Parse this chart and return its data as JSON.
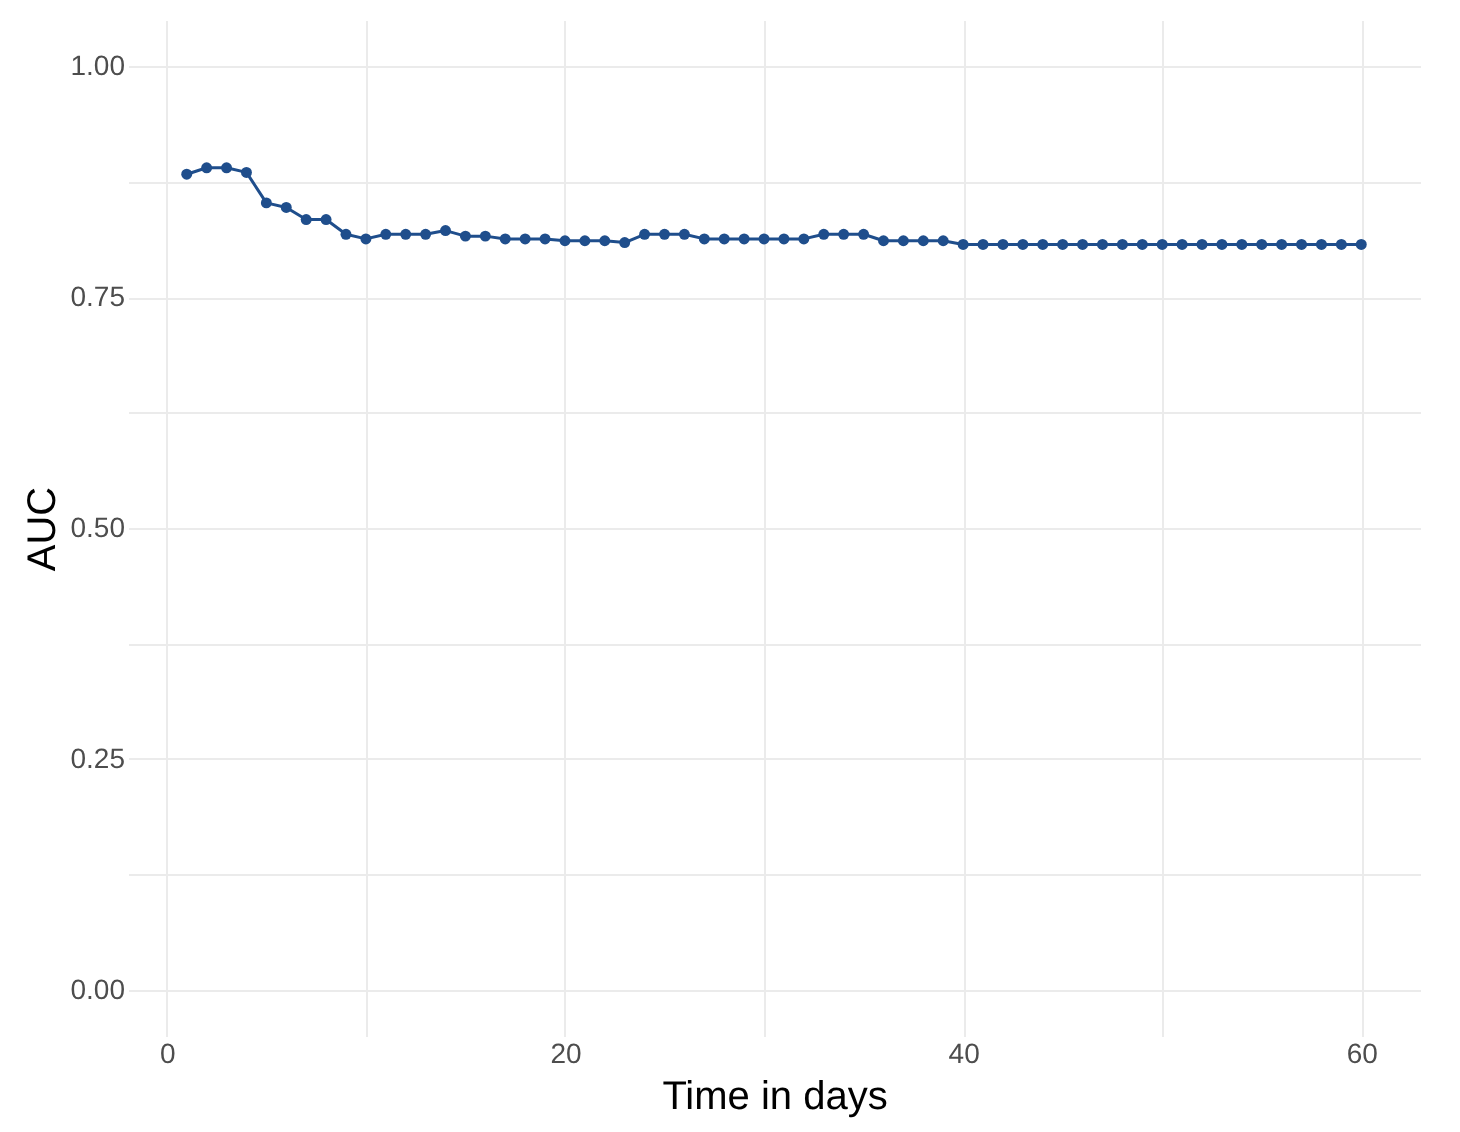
{
  "chart_data": {
    "type": "line",
    "xlabel": "Time in days",
    "ylabel": "AUC",
    "x": [
      1,
      2,
      3,
      4,
      5,
      6,
      7,
      8,
      9,
      10,
      11,
      12,
      13,
      14,
      15,
      16,
      17,
      18,
      19,
      20,
      21,
      22,
      23,
      24,
      25,
      26,
      27,
      28,
      29,
      30,
      31,
      32,
      33,
      34,
      35,
      36,
      37,
      38,
      39,
      40,
      41,
      42,
      43,
      44,
      45,
      46,
      47,
      48,
      49,
      50,
      51,
      52,
      53,
      54,
      55,
      56,
      57,
      58,
      59,
      60
    ],
    "series": [
      {
        "color": "#1f4e8c",
        "values": [
          0.883,
          0.89,
          0.89,
          0.885,
          0.852,
          0.847,
          0.834,
          0.834,
          0.818,
          0.813,
          0.818,
          0.818,
          0.818,
          0.822,
          0.816,
          0.816,
          0.813,
          0.813,
          0.813,
          0.811,
          0.811,
          0.811,
          0.809,
          0.818,
          0.818,
          0.818,
          0.813,
          0.813,
          0.813,
          0.813,
          0.813,
          0.813,
          0.818,
          0.818,
          0.818,
          0.811,
          0.811,
          0.811,
          0.811,
          0.807,
          0.807,
          0.807,
          0.807,
          0.807,
          0.807,
          0.807,
          0.807,
          0.807,
          0.807,
          0.807,
          0.807,
          0.807,
          0.807,
          0.807,
          0.807,
          0.807,
          0.807,
          0.807,
          0.807,
          0.807
        ]
      }
    ],
    "xlim": [
      -1.95,
      62.95
    ],
    "ylim": [
      -0.05,
      1.05
    ],
    "xticks": [
      0,
      {
        "value": 10,
        "label": null
      },
      20,
      {
        "value": 30,
        "label": null
      },
      40,
      {
        "value": 50,
        "label": null
      },
      60
    ],
    "yticks": [
      {
        "value": 0,
        "label": "0.00"
      },
      {
        "value": 0.125,
        "label": null
      },
      {
        "value": 0.25,
        "label": "0.25"
      },
      {
        "value": 0.375,
        "label": null
      },
      {
        "value": 0.5,
        "label": "0.50"
      },
      {
        "value": 0.625,
        "label": null
      },
      {
        "value": 0.75,
        "label": "0.75"
      },
      {
        "value": 0.875,
        "label": null
      },
      {
        "value": 1,
        "label": "1.00"
      }
    ],
    "grid": true,
    "marker": "circle",
    "line_style": "solid"
  }
}
